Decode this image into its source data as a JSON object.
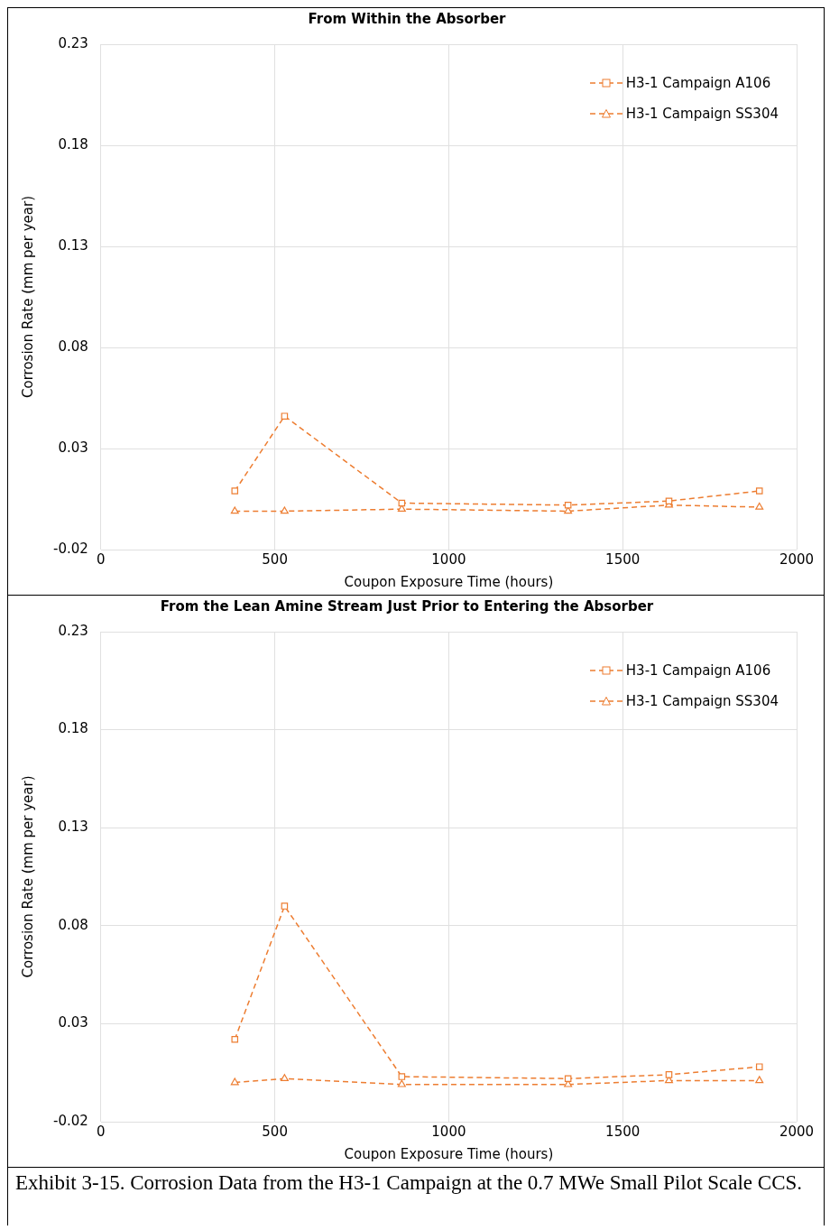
{
  "chart_data": [
    {
      "type": "line",
      "title": "From Within the Absorber",
      "xlabel": "Coupon Exposure Time (hours)",
      "ylabel": "Corrosion Rate (mm per year)",
      "xlim": [
        0,
        2000
      ],
      "xticks": [
        0,
        500,
        1000,
        1500,
        2000
      ],
      "ylim": [
        -0.02,
        0.23
      ],
      "yticks": [
        -0.02,
        0.03,
        0.08,
        0.13,
        0.18,
        0.23
      ],
      "grid": true,
      "legend": "top right",
      "line_style": "dashed",
      "series": [
        {
          "name": "H3-1 Campaign A106",
          "color": "#ed7d31",
          "marker": "square",
          "x": [
            385,
            528,
            865,
            1343,
            1633,
            1893
          ],
          "values": [
            0.009,
            0.046,
            0.003,
            0.002,
            0.004,
            0.009
          ]
        },
        {
          "name": "H3-1 Campaign SS304",
          "color": "#ed7d31",
          "marker": "triangle",
          "x": [
            385,
            528,
            865,
            1343,
            1633,
            1893
          ],
          "values": [
            -0.001,
            -0.001,
            0.0,
            -0.001,
            0.002,
            0.001
          ]
        }
      ]
    },
    {
      "type": "line",
      "title": "From the Lean Amine Stream Just Prior to Entering the Absorber",
      "xlabel": "Coupon Exposure Time (hours)",
      "ylabel": "Corrosion Rate (mm per year)",
      "xlim": [
        0,
        2000
      ],
      "xticks": [
        0,
        500,
        1000,
        1500,
        2000
      ],
      "ylim": [
        -0.02,
        0.23
      ],
      "yticks": [
        -0.02,
        0.03,
        0.08,
        0.13,
        0.18,
        0.23
      ],
      "grid": true,
      "legend": "top right",
      "line_style": "dashed",
      "annotations": [
        "Exhibit 3-15. Corrosion Data from the H3-1 Campaign at the 0.7 MWe Small Pilot Scale CCS."
      ],
      "series": [
        {
          "name": "H3-1 Campaign A106",
          "color": "#ed7d31",
          "marker": "square",
          "x": [
            385,
            528,
            865,
            1343,
            1633,
            1893
          ],
          "values": [
            0.022,
            0.09,
            0.003,
            0.002,
            0.004,
            0.008
          ]
        },
        {
          "name": "H3-1 Campaign SS304",
          "color": "#ed7d31",
          "marker": "triangle",
          "x": [
            385,
            528,
            865,
            1343,
            1633,
            1893
          ],
          "values": [
            0.0,
            0.002,
            -0.001,
            -0.001,
            0.001,
            0.001
          ]
        }
      ]
    }
  ]
}
